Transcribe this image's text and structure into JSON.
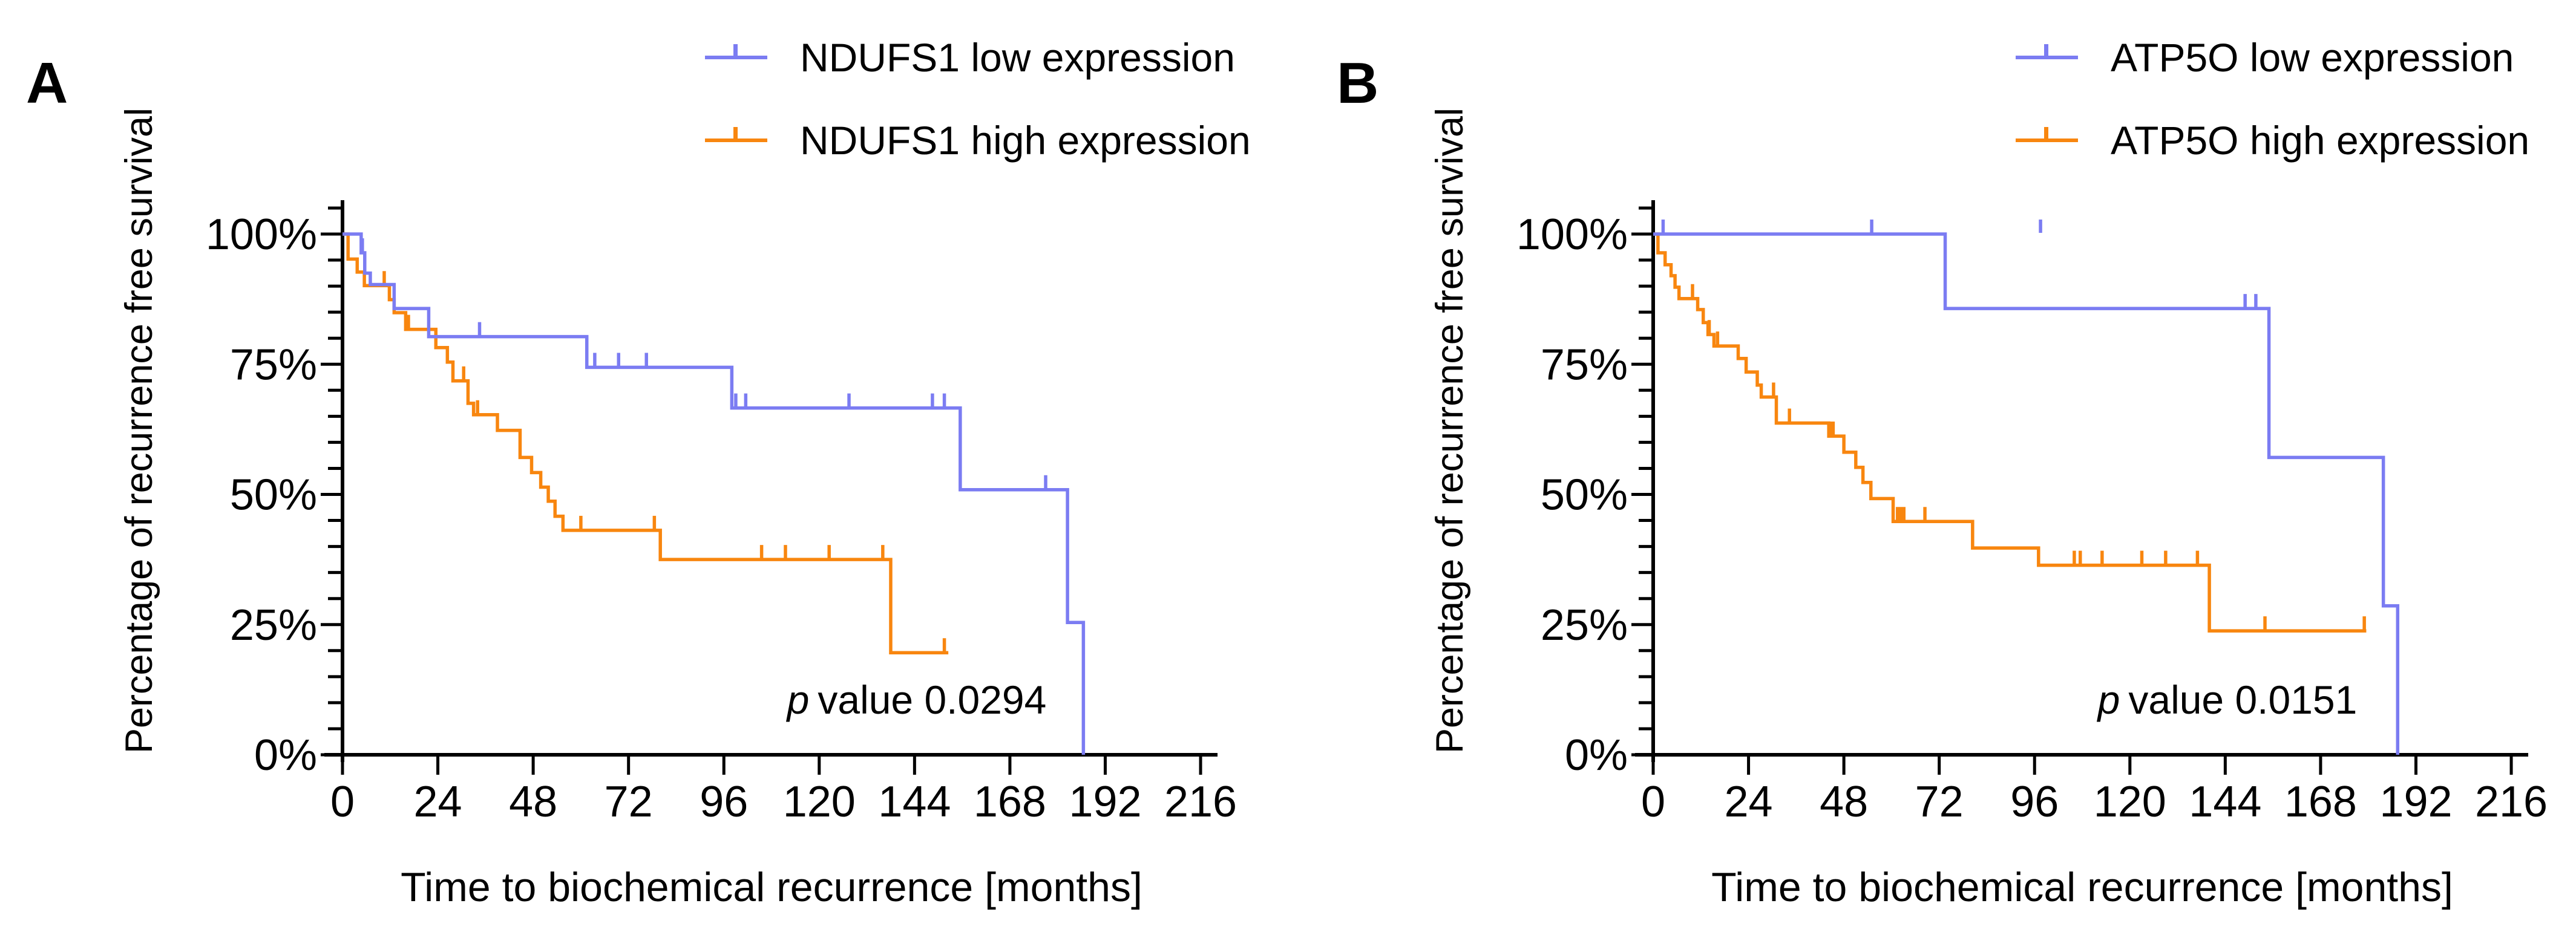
{
  "panels": [
    {
      "letter": "A"
    },
    {
      "letter": "B"
    }
  ],
  "chart_data": [
    {
      "type": "line",
      "subtype": "kaplan-meier-step",
      "title": "",
      "xlabel": "Time to biochemical recurrence [months]",
      "ylabel": "Percentage of recurrence free survival",
      "xlim": [
        0,
        216
      ],
      "ylim": [
        0,
        100
      ],
      "x_ticks": [
        0,
        24,
        48,
        72,
        96,
        120,
        144,
        168,
        192,
        216
      ],
      "y_ticks": [
        [
          0,
          "0%"
        ],
        [
          25,
          "25%"
        ],
        [
          50,
          "50%"
        ],
        [
          75,
          "75%"
        ],
        [
          100,
          "100%"
        ]
      ],
      "y_minor_tick_step": 5,
      "grid": false,
      "legend_position": "top",
      "p_italic": "p",
      "p_text": "value 0.0294",
      "series": [
        {
          "name": "NDUFS1 low expression",
          "color": "#7b7cf2",
          "steps": [
            [
              0,
              100
            ],
            [
              4.7,
              96.4
            ],
            [
              5.6,
              92.5
            ],
            [
              7,
              90.3
            ],
            [
              13,
              85.7
            ],
            [
              21.7,
              80.3
            ],
            [
              61.5,
              74.4
            ],
            [
              98,
              66.6
            ],
            [
              155.5,
              50.9
            ],
            [
              182.5,
              25.4
            ],
            [
              186.5,
              0
            ]
          ],
          "censors": [
            [
              5,
              96.4
            ],
            [
              34.5,
              80.3
            ],
            [
              63.5,
              74.4
            ],
            [
              69.5,
              74.4
            ],
            [
              76.5,
              74.4
            ],
            [
              99,
              66.6
            ],
            [
              101.5,
              66.6
            ],
            [
              127.5,
              66.6
            ],
            [
              148.5,
              66.6
            ],
            [
              151.5,
              66.6
            ],
            [
              177,
              50.9
            ]
          ],
          "end_time": 186.5
        },
        {
          "name": "NDUFS1 high expression",
          "color": "#f8860f",
          "steps": [
            [
              0,
              100
            ],
            [
              1.4,
              95.2
            ],
            [
              3.7,
              92.7
            ],
            [
              5.5,
              90.1
            ],
            [
              11.8,
              87.4
            ],
            [
              13,
              84.9
            ],
            [
              15.9,
              81.7
            ],
            [
              23.5,
              78.2
            ],
            [
              26.4,
              75.4
            ],
            [
              27.8,
              71.8
            ],
            [
              31.6,
              67.5
            ],
            [
              33,
              65.3
            ],
            [
              39,
              62.3
            ],
            [
              44.7,
              57.1
            ],
            [
              47.6,
              54.2
            ],
            [
              49.9,
              51.4
            ],
            [
              51.8,
              48.7
            ],
            [
              53.5,
              45.8
            ],
            [
              55.5,
              43.1
            ],
            [
              80,
              37.5
            ],
            [
              138,
              19.6
            ]
          ],
          "censors": [
            [
              10.5,
              90.1
            ],
            [
              16.6,
              81.7
            ],
            [
              30.5,
              71.8
            ],
            [
              34,
              65.3
            ],
            [
              60,
              43.1
            ],
            [
              78.5,
              43.1
            ],
            [
              105.5,
              37.5
            ],
            [
              111.5,
              37.5
            ],
            [
              122.5,
              37.5
            ],
            [
              136,
              37.5
            ],
            [
              151.5,
              19.6
            ]
          ],
          "end_time": 152.5
        }
      ]
    },
    {
      "type": "line",
      "subtype": "kaplan-meier-step",
      "title": "",
      "xlabel": "Time to biochemical recurrence [months]",
      "ylabel": "Percentage of recurrence free survival",
      "xlim": [
        0,
        216
      ],
      "ylim": [
        0,
        100
      ],
      "x_ticks": [
        0,
        24,
        48,
        72,
        96,
        120,
        144,
        168,
        192,
        216
      ],
      "y_ticks": [
        [
          0,
          "0%"
        ],
        [
          25,
          "25%"
        ],
        [
          50,
          "50%"
        ],
        [
          75,
          "75%"
        ],
        [
          100,
          "100%"
        ]
      ],
      "y_minor_tick_step": 5,
      "grid": false,
      "legend_position": "top",
      "p_italic": "p",
      "p_text": "value 0.0151",
      "series": [
        {
          "name": "ATP5O low expression",
          "color": "#7b7cf2",
          "steps": [
            [
              0,
              100
            ],
            [
              73.5,
              85.7
            ],
            [
              155,
              57.1
            ],
            [
              183.8,
              28.6
            ],
            [
              187.4,
              0
            ]
          ],
          "censors": [
            [
              2.5,
              100
            ],
            [
              55,
              100
            ],
            [
              97.5,
              100
            ],
            [
              149,
              85.7
            ],
            [
              151.7,
              85.7
            ]
          ],
          "end_time": 187.4
        },
        {
          "name": "ATP5O high expression",
          "color": "#f8860f",
          "steps": [
            [
              0,
              100
            ],
            [
              1.2,
              96.4
            ],
            [
              3,
              94.1
            ],
            [
              4.5,
              92
            ],
            [
              5.5,
              89.8
            ],
            [
              6.5,
              87.6
            ],
            [
              11.2,
              85.5
            ],
            [
              12.6,
              83
            ],
            [
              13.8,
              80.7
            ],
            [
              15.3,
              78.5
            ],
            [
              21.4,
              76.1
            ],
            [
              23.4,
              73.5
            ],
            [
              26.2,
              71
            ],
            [
              27.2,
              68.7
            ],
            [
              31,
              63.7
            ],
            [
              44.2,
              61.2
            ],
            [
              48,
              58.1
            ],
            [
              51,
              55.2
            ],
            [
              52.8,
              52.3
            ],
            [
              54.8,
              49.2
            ],
            [
              60.4,
              44.8
            ],
            [
              80.4,
              39.7
            ],
            [
              97,
              36.4
            ],
            [
              140,
              23.8
            ]
          ],
          "censors": [
            [
              9.9,
              87.6
            ],
            [
              14.1,
              80.7
            ],
            [
              16.2,
              78.5
            ],
            [
              30.3,
              68.7
            ],
            [
              34.3,
              63.7
            ],
            [
              44.7,
              61.2
            ],
            [
              45.3,
              61.2
            ],
            [
              61.5,
              44.8
            ],
            [
              62.3,
              44.8
            ],
            [
              63.1,
              44.8
            ],
            [
              68.4,
              44.8
            ],
            [
              106,
              36.4
            ],
            [
              107.5,
              36.4
            ],
            [
              113,
              36.4
            ],
            [
              123,
              36.4
            ],
            [
              129,
              36.4
            ],
            [
              137,
              36.4
            ],
            [
              154,
              23.8
            ],
            [
              179,
              23.8
            ]
          ],
          "end_time": 179.5
        }
      ]
    }
  ]
}
